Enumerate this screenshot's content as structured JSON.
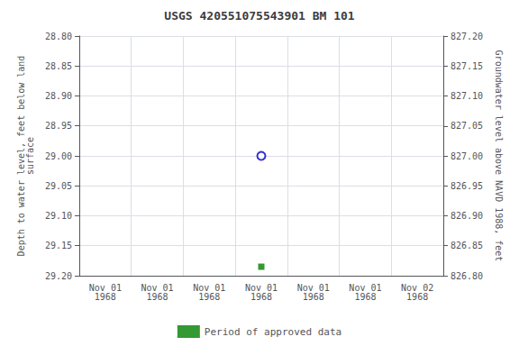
{
  "chart_data": {
    "type": "scatter",
    "title": "USGS 420551075543901 BM 101",
    "categories": [
      "Nov 01\n1968",
      "Nov 01\n1968",
      "Nov 01\n1968",
      "Nov 01\n1968",
      "Nov 01\n1968",
      "Nov 01\n1968",
      "Nov 02\n1968"
    ],
    "y_label": "Depth to water level, feet below land\nsurface",
    "y2_label": "Groundwater level above NAVD 1988, feet",
    "ylim": [
      29.2,
      28.8
    ],
    "yticks": [
      {
        "value": 28.8,
        "label": "28.80"
      },
      {
        "value": 28.85,
        "label": "28.85"
      },
      {
        "value": 28.9,
        "label": "28.90"
      },
      {
        "value": 28.95,
        "label": "28.95"
      },
      {
        "value": 29.0,
        "label": "29.00"
      },
      {
        "value": 29.05,
        "label": "29.05"
      },
      {
        "value": 29.1,
        "label": "29.10"
      },
      {
        "value": 29.15,
        "label": "29.15"
      },
      {
        "value": 29.2,
        "label": "29.20"
      }
    ],
    "y2lim": [
      826.8,
      827.2
    ],
    "y2ticks": [
      {
        "value": 827.2,
        "label": "827.20"
      },
      {
        "value": 827.15,
        "label": "827.15"
      },
      {
        "value": 827.1,
        "label": "827.10"
      },
      {
        "value": 827.05,
        "label": "827.05"
      },
      {
        "value": 827.0,
        "label": "827.00"
      },
      {
        "value": 826.95,
        "label": "826.95"
      },
      {
        "value": 826.9,
        "label": "826.90"
      },
      {
        "value": 826.85,
        "label": "826.85"
      },
      {
        "value": 826.8,
        "label": "826.80"
      }
    ],
    "grid": true,
    "legend": "bottom",
    "series": [
      {
        "color": "#0000cc",
        "marker": "open_circle",
        "values": [
          null,
          null,
          null,
          29.0,
          null,
          null,
          null
        ]
      },
      {
        "name": "Period of approved data",
        "color": "#008000",
        "marker": "square",
        "values": [
          null,
          null,
          null,
          29.185,
          null,
          null,
          null
        ]
      }
    ]
  }
}
